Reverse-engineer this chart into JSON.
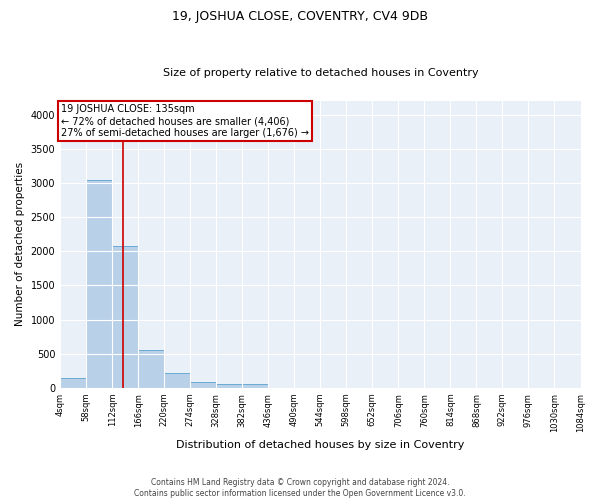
{
  "title": "19, JOSHUA CLOSE, COVENTRY, CV4 9DB",
  "subtitle": "Size of property relative to detached houses in Coventry",
  "xlabel": "Distribution of detached houses by size in Coventry",
  "ylabel": "Number of detached properties",
  "bar_color": "#b8d0e8",
  "bar_edge_color": "#6aaad4",
  "background_color": "#eaf0f8",
  "grid_color": "#ffffff",
  "bin_edges": [
    4,
    58,
    112,
    166,
    220,
    274,
    328,
    382,
    436,
    490,
    544,
    598,
    652,
    706,
    760,
    814,
    868,
    922,
    976,
    1030,
    1084
  ],
  "bar_heights": [
    150,
    3050,
    2075,
    550,
    210,
    80,
    55,
    50,
    0,
    0,
    0,
    0,
    0,
    0,
    0,
    0,
    0,
    0,
    0,
    0
  ],
  "property_size": 135,
  "annotation_line1": "19 JOSHUA CLOSE: 135sqm",
  "annotation_line2": "← 72% of detached houses are smaller (4,406)",
  "annotation_line3": "27% of semi-detached houses are larger (1,676) →",
  "annotation_box_color": "#cc0000",
  "red_line_color": "#cc0000",
  "ylim": [
    0,
    4200
  ],
  "yticks": [
    0,
    500,
    1000,
    1500,
    2000,
    2500,
    3000,
    3500,
    4000
  ],
  "tick_labels": [
    "4sqm",
    "58sqm",
    "112sqm",
    "166sqm",
    "220sqm",
    "274sqm",
    "328sqm",
    "382sqm",
    "436sqm",
    "490sqm",
    "544sqm",
    "598sqm",
    "652sqm",
    "706sqm",
    "760sqm",
    "814sqm",
    "868sqm",
    "922sqm",
    "976sqm",
    "1030sqm",
    "1084sqm"
  ],
  "footer_line1": "Contains HM Land Registry data © Crown copyright and database right 2024.",
  "footer_line2": "Contains public sector information licensed under the Open Government Licence v3.0.",
  "title_fontsize": 9,
  "subtitle_fontsize": 8,
  "ylabel_fontsize": 7.5,
  "xlabel_fontsize": 8,
  "tick_fontsize": 6,
  "ytick_fontsize": 7,
  "annotation_fontsize": 7,
  "footer_fontsize": 5.5
}
